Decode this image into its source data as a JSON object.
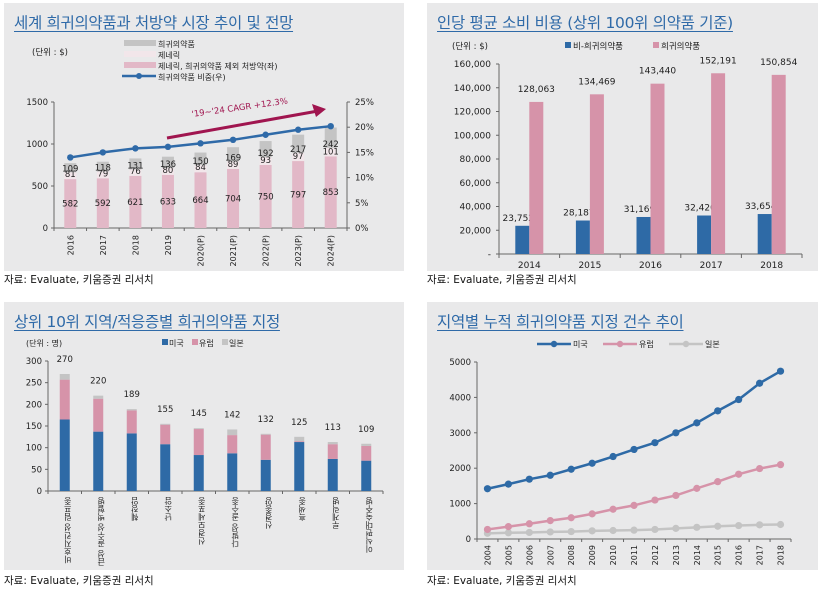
{
  "source_label": "자료: Evaluate, 키움증권 리서치",
  "chart_data": [
    {
      "type": "bar",
      "id": "world-market",
      "title": "세계 희귀의약품과 처방약 시장 추이 및 전망",
      "unit": "(단위 : $)",
      "categories": [
        "2016",
        "2017",
        "2018",
        "2019",
        "2020(P)",
        "2021(P)",
        "2022(P)",
        "2023(P)",
        "2024(P)"
      ],
      "series": [
        {
          "name": "제네릭, 희귀의약품 제외 처방약(좌)",
          "color": "#e2b8c7",
          "stack": true,
          "values": [
            582,
            592,
            621,
            633,
            664,
            704,
            750,
            797,
            853
          ]
        },
        {
          "name": "제네릭",
          "color": "#f2e6ea",
          "stack": true,
          "values": [
            81,
            79,
            76,
            80,
            84,
            89,
            93,
            97,
            101
          ]
        },
        {
          "name": "희귀의약품",
          "color": "#c4c4c4",
          "stack": true,
          "values": [
            109,
            118,
            131,
            136,
            150,
            169,
            192,
            217,
            242
          ]
        },
        {
          "name": "희귀의약품 비중(우)",
          "color": "#2f6aa8",
          "type": "line",
          "axis": "right",
          "values": [
            14.0,
            15.0,
            15.8,
            16.1,
            16.8,
            17.5,
            18.5,
            19.5,
            20.2
          ]
        }
      ],
      "legend_order": [
        "희귀의약품",
        "제네릭",
        "제네릭, 희귀의약품 제외 처방약(좌)",
        "희귀의약품 비중(우)"
      ],
      "ylim": [
        0,
        1500
      ],
      "yticks": [
        "0",
        "500",
        "1000",
        "1500"
      ],
      "ylim_right": [
        0,
        25
      ],
      "yticks_right": [
        "0%",
        "5%",
        "10%",
        "15%",
        "20%",
        "25%"
      ],
      "annotation": {
        "text": "'19~'24 CAGR +12.3%",
        "color": "#a0154f"
      }
    },
    {
      "type": "bar",
      "id": "per-capita-cost",
      "title": "인당 평균 소비 비용 (상위 100위 의약품 기준)",
      "unit": "(단위 : $)",
      "categories": [
        "2014",
        "2015",
        "2016",
        "2017",
        "2018"
      ],
      "series": [
        {
          "name": "비-희귀의약품",
          "color": "#2e6aa6",
          "values": [
            23752,
            28187,
            31169,
            32420,
            33654
          ],
          "labels": [
            "23,752",
            "28,187",
            "31,169",
            "32,420",
            "33,654"
          ]
        },
        {
          "name": "희귀의약품",
          "color": "#d693a9",
          "values": [
            128063,
            134469,
            143440,
            152191,
            150854
          ],
          "labels": [
            "128,063",
            "134,469",
            "143,440",
            "152,191",
            "150,854"
          ]
        }
      ],
      "ylim": [
        0,
        160000
      ],
      "yticks": [
        "-",
        "20,000",
        "40,000",
        "60,000",
        "80,000",
        "100,000",
        "120,000",
        "140,000",
        "160,000"
      ]
    },
    {
      "type": "bar",
      "id": "top10-designations",
      "title": "상위 10위 지역/적응증별 희귀의약품 지정",
      "unit": "(단위 : 명)",
      "categories": [
        "비호지킨성 림프종",
        "급성 골수성 백혈병",
        "췌장암",
        "난소암",
        "신경모세포종",
        "다발성 골수종",
        "신경종양",
        "흑색종",
        "루게릭병",
        "이식편대숙주병"
      ],
      "totals": [
        "270",
        "220",
        "189",
        "155",
        "145",
        "142",
        "132",
        "125",
        "113",
        "109"
      ],
      "series": [
        {
          "name": "미국",
          "color": "#2e6aa6",
          "values": [
            165,
            137,
            133,
            108,
            83,
            87,
            72,
            113,
            74,
            70
          ]
        },
        {
          "name": "유럽",
          "color": "#d693a9",
          "values": [
            92,
            76,
            53,
            45,
            60,
            42,
            58,
            2,
            34,
            34
          ]
        },
        {
          "name": "일본",
          "color": "#c4c4c4",
          "values": [
            13,
            7,
            3,
            2,
            2,
            13,
            2,
            10,
            5,
            5
          ]
        }
      ],
      "ylim": [
        0,
        300
      ],
      "yticks": [
        "0",
        "50",
        "100",
        "150",
        "200",
        "250",
        "300"
      ]
    },
    {
      "type": "line",
      "id": "cumulative-designations",
      "title": "지역별 누적 희귀의약품 지정 건수 추이",
      "categories": [
        "2004",
        "2005",
        "2006",
        "2007",
        "2008",
        "2009",
        "2010",
        "2011",
        "2012",
        "2013",
        "2014",
        "2015",
        "2016",
        "2017",
        "2018"
      ],
      "series": [
        {
          "name": "미국",
          "color": "#2e6aa6",
          "values": [
            1420,
            1550,
            1690,
            1800,
            1970,
            2140,
            2330,
            2530,
            2720,
            3000,
            3280,
            3620,
            3940,
            4400,
            4740
          ]
        },
        {
          "name": "유럽",
          "color": "#d693a9",
          "values": [
            270,
            350,
            430,
            520,
            600,
            710,
            840,
            950,
            1100,
            1230,
            1430,
            1620,
            1830,
            1990,
            2100
          ]
        },
        {
          "name": "일본",
          "color": "#c4c4c4",
          "values": [
            160,
            175,
            185,
            200,
            210,
            230,
            240,
            250,
            270,
            300,
            330,
            360,
            380,
            400,
            410
          ]
        }
      ],
      "ylim": [
        0,
        5000
      ],
      "yticks": [
        "0",
        "1000",
        "2000",
        "3000",
        "4000",
        "5000"
      ]
    }
  ]
}
